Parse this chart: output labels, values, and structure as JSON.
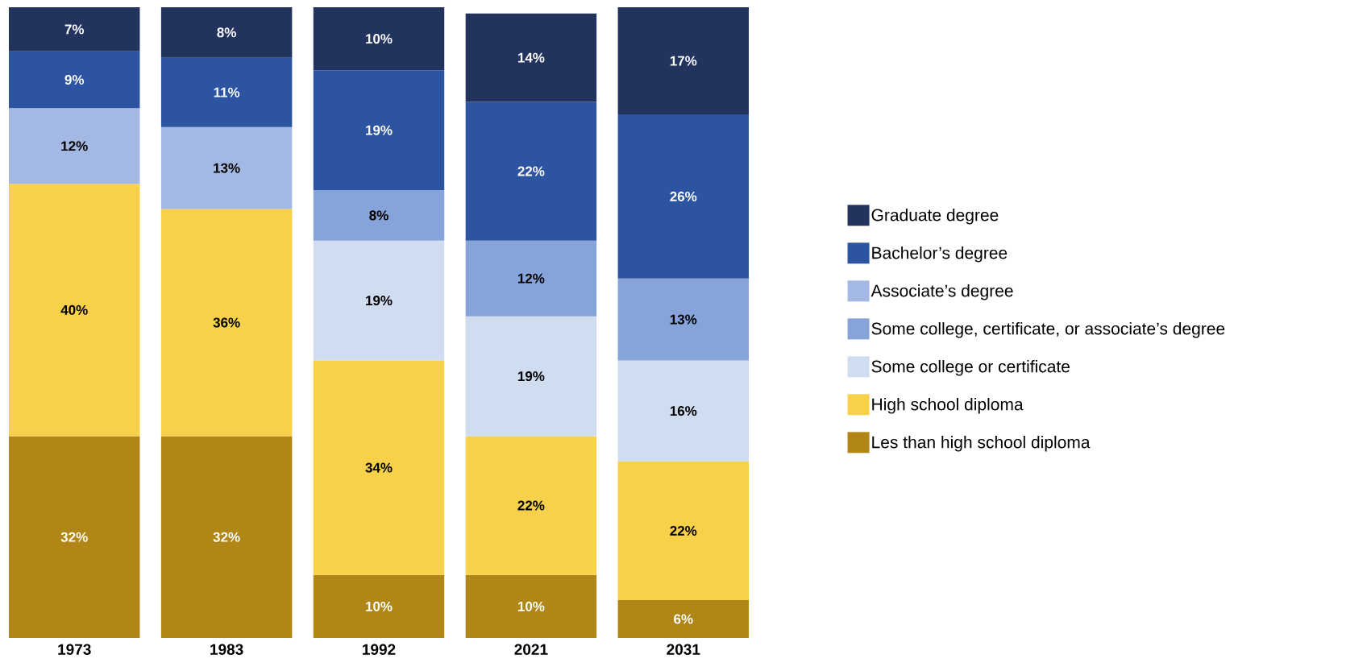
{
  "chart_data": {
    "type": "bar",
    "stacked": true,
    "legend": "right",
    "categories": [
      "1973",
      "1983",
      "1992",
      "2021",
      "2031"
    ],
    "series": [
      {
        "name": "Les than high school diploma",
        "color": "#b08617",
        "values": [
          32,
          32,
          10,
          10,
          6
        ],
        "value_labels": [
          "32%",
          "32%",
          "10%",
          "10%",
          "6%"
        ]
      },
      {
        "name": "High school diploma",
        "color": "#f7d14a",
        "values": [
          40,
          36,
          34,
          22,
          22
        ],
        "value_labels": [
          "40%",
          "36%",
          "34%",
          "22%",
          "22%"
        ]
      },
      {
        "name": "Some college or certificate",
        "color": "#d0dcef",
        "values": [
          null,
          null,
          19,
          19,
          16
        ],
        "value_labels": [
          null,
          null,
          "19%",
          "19%",
          "16%"
        ]
      },
      {
        "name": "Some college, certificate, or associate’s degree",
        "color": "#86a3da",
        "values": [
          null,
          null,
          8,
          12,
          13
        ],
        "value_labels": [
          null,
          null,
          "8%",
          "12%",
          "13%"
        ]
      },
      {
        "name": "Associate’s degree",
        "color": "#a3b8e2",
        "values": [
          12,
          13,
          null,
          null,
          null
        ],
        "value_labels": [
          "12%",
          "13%",
          null,
          null,
          null
        ]
      },
      {
        "name": "Bachelor’s degree",
        "color": "#2c54a0",
        "values": [
          9,
          11,
          19,
          22,
          26
        ],
        "value_labels": [
          "9%",
          "11%",
          "19%",
          "22%",
          "26%"
        ]
      },
      {
        "name": "Graduate degree",
        "color": "#22335e",
        "values": [
          7,
          8,
          10,
          14,
          17
        ],
        "value_labels": [
          "7%",
          "8%",
          "10%",
          "14%",
          "17%"
        ]
      }
    ]
  }
}
